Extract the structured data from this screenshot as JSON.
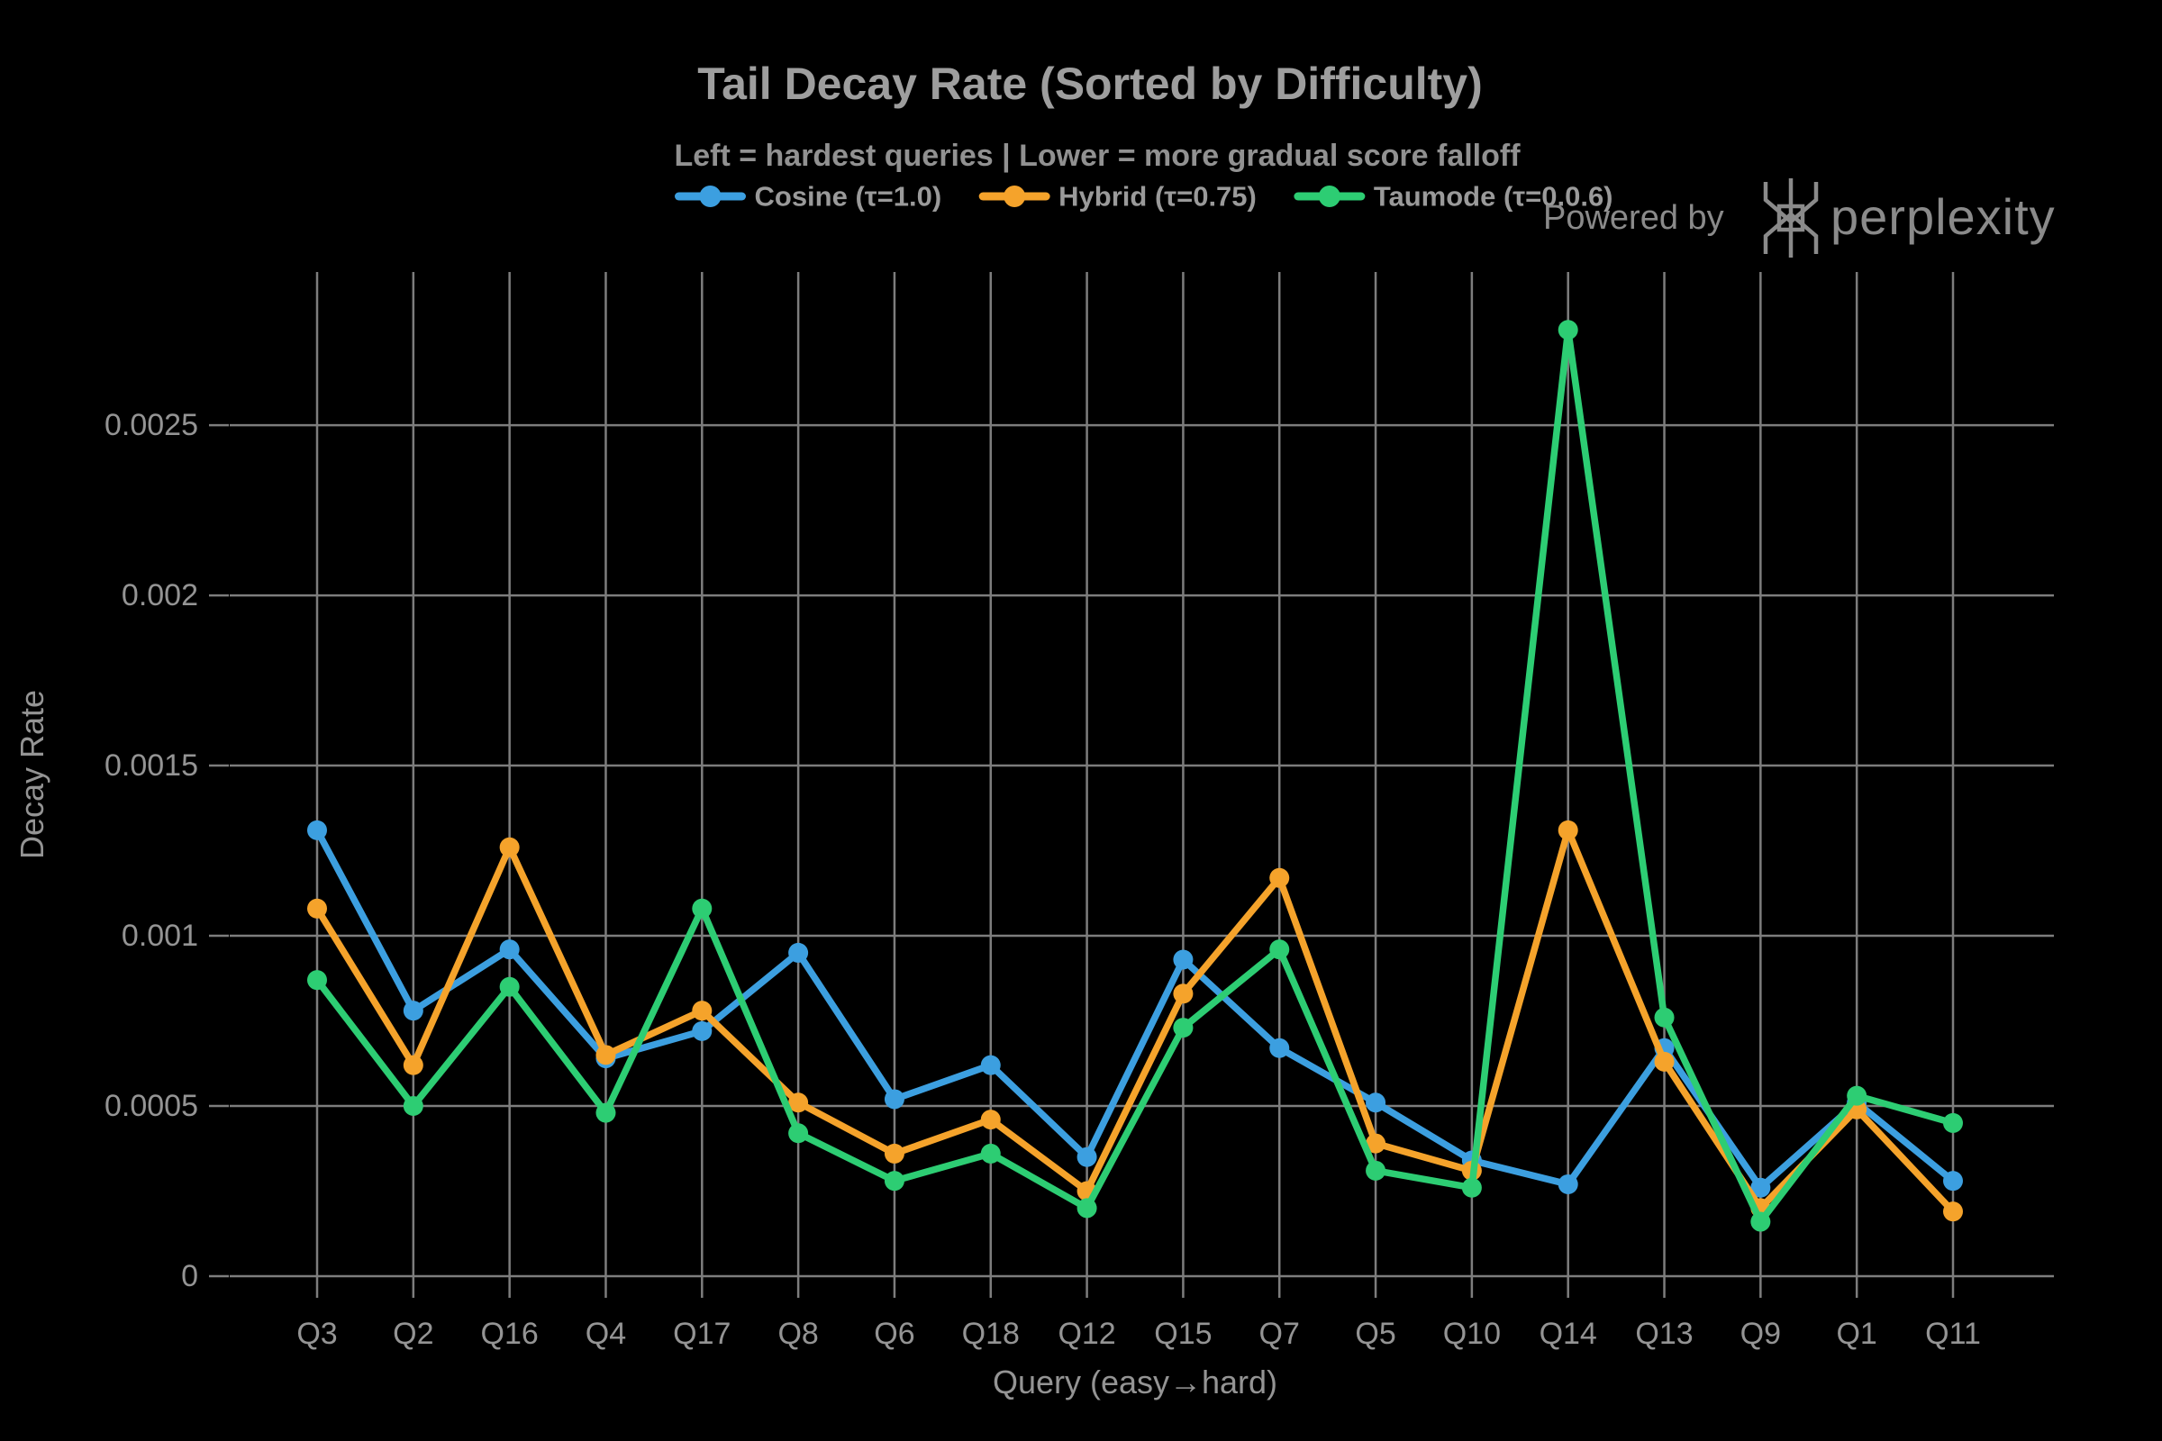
{
  "header": {
    "title": "Tail Decay Rate (Sorted by Difficulty)",
    "subtitle": "Left = hardest queries | Lower = more gradual score falloff",
    "powered_by_label": "Powered by",
    "brand_name": "perplexity"
  },
  "colors": {
    "background": "#000000",
    "grid": "#7d7d7d",
    "axis": "#7d7d7d",
    "tick_text": "#949494",
    "title_text": "#9e9e9e",
    "subtitle_text": "#919191",
    "brand_text": "#8a8a8a",
    "cosine": "#3c9fe0",
    "hybrid": "#f5a32b",
    "taumode": "#2dcd73"
  },
  "legend": {
    "items": [
      {
        "label": "Cosine (τ=1.0)",
        "color": "#3c9fe0"
      },
      {
        "label": "Hybrid (τ=0.75)",
        "color": "#f5a32b"
      },
      {
        "label": "Taumode (τ=0.0.6)",
        "color": "#2dcd73"
      }
    ]
  },
  "chart_data": {
    "type": "line",
    "title": "Tail Decay Rate (Sorted by Difficulty)",
    "subtitle": "Left = hardest queries | Lower = more gradual score falloff",
    "xlabel": "Query (easy→hard)",
    "ylabel": "Decay Rate",
    "categories": [
      "Q3",
      "Q2",
      "Q16",
      "Q4",
      "Q17",
      "Q8",
      "Q6",
      "Q18",
      "Q12",
      "Q15",
      "Q7",
      "Q5",
      "Q10",
      "Q14",
      "Q13",
      "Q9",
      "Q1",
      "Q11"
    ],
    "series": [
      {
        "name": "Cosine (τ=1.0)",
        "color_key": "cosine",
        "color": "#3c9fe0",
        "values": [
          0.00131,
          0.00078,
          0.00096,
          0.00064,
          0.00072,
          0.00095,
          0.00052,
          0.00062,
          0.00035,
          0.00093,
          0.00067,
          0.00051,
          0.00034,
          0.00027,
          0.00067,
          0.00026,
          0.00051,
          0.00028
        ]
      },
      {
        "name": "Hybrid (τ=0.75)",
        "color_key": "hybrid",
        "color": "#f5a32b",
        "values": [
          0.00108,
          0.00062,
          0.00126,
          0.00065,
          0.00078,
          0.00051,
          0.00036,
          0.00046,
          0.00025,
          0.00083,
          0.00117,
          0.00039,
          0.00031,
          0.00131,
          0.00063,
          0.0002,
          0.00049,
          0.00019
        ]
      },
      {
        "name": "Taumode (τ=0.0.6)",
        "color_key": "taumode",
        "color": "#2dcd73",
        "values": [
          0.00087,
          0.0005,
          0.00085,
          0.00048,
          0.00108,
          0.00042,
          0.00028,
          0.00036,
          0.0002,
          0.00073,
          0.00096,
          0.00031,
          0.00026,
          0.00278,
          0.00076,
          0.00016,
          0.00053,
          0.00045
        ]
      }
    ],
    "yticks": {
      "values": [
        0,
        0.0005,
        0.001,
        0.0015,
        0.002,
        0.0025
      ],
      "labels": [
        "0",
        "0.0005",
        "0.001",
        "0.0015",
        "0.002",
        "0.0025"
      ]
    },
    "ylim": [
      0,
      0.00295
    ],
    "grid": true,
    "legend_position": "top"
  }
}
